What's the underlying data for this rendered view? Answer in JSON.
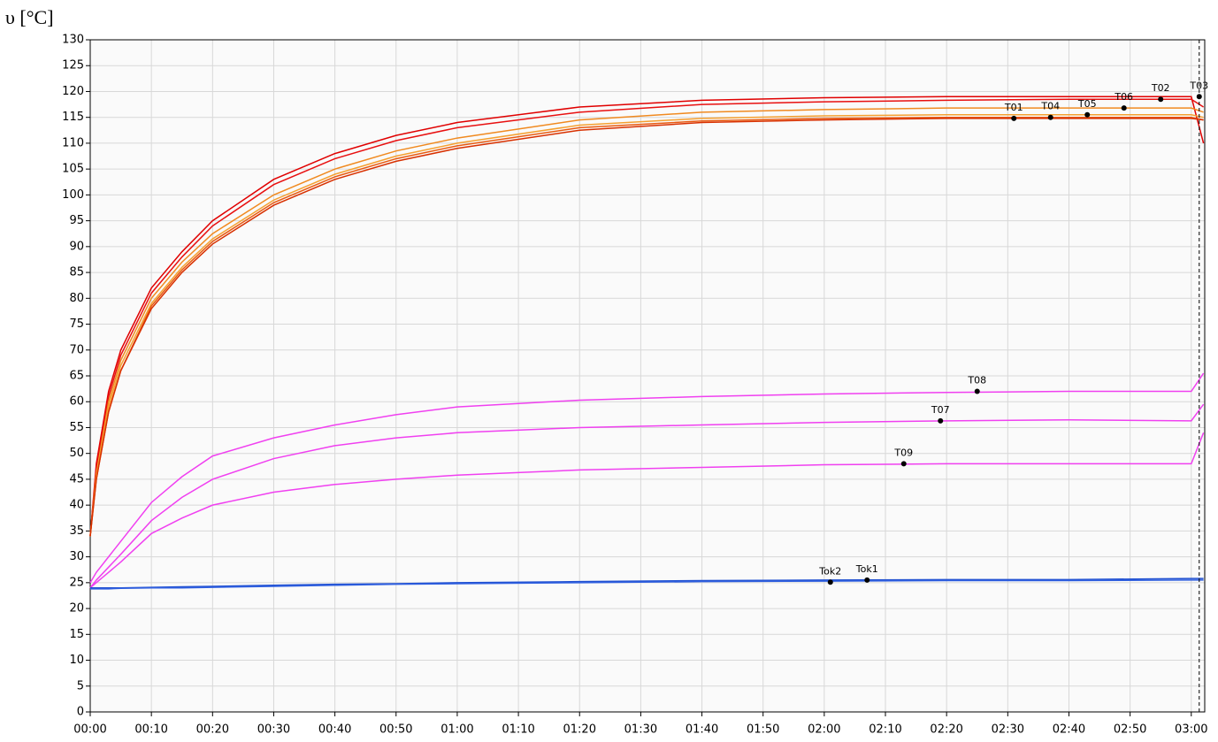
{
  "chart_data": {
    "type": "line",
    "y_label": "υ [°C]",
    "x": [
      0,
      1,
      3,
      5,
      10,
      15,
      20,
      30,
      40,
      50,
      60,
      80,
      100,
      120,
      140,
      160,
      180,
      182
    ],
    "series": [
      {
        "name": "T03",
        "color": "#e00000",
        "values": [
          34,
          48,
          62,
          70,
          82,
          89,
          95,
          103,
          108,
          111.5,
          114,
          117,
          118.3,
          118.8,
          119,
          119,
          119,
          110
        ]
      },
      {
        "name": "T02",
        "color": "#e81010",
        "values": [
          34,
          47,
          61,
          69,
          81,
          88,
          94,
          102,
          107,
          110.5,
          113,
          116,
          117.5,
          118,
          118.3,
          118.5,
          118.5,
          117
        ]
      },
      {
        "name": "T06",
        "color": "#f08a20",
        "values": [
          34,
          46,
          60,
          68,
          80,
          87,
          92.5,
          100,
          105,
          108.5,
          111,
          114.5,
          116,
          116.5,
          116.8,
          116.8,
          116.8,
          116
        ]
      },
      {
        "name": "T05",
        "color": "#f5a030",
        "values": [
          34,
          46,
          59,
          67,
          79,
          86,
          91.5,
          99,
          104,
          107.5,
          110,
          113.5,
          114.8,
          115.3,
          115.5,
          115.5,
          115.5,
          115
        ]
      },
      {
        "name": "T04",
        "color": "#e85a10",
        "values": [
          34,
          45,
          58,
          66,
          78.5,
          85.5,
          91,
          98.5,
          103.5,
          107,
          109.5,
          113,
          114.3,
          114.8,
          115,
          115,
          115,
          114.5
        ]
      },
      {
        "name": "T01",
        "color": "#d83000",
        "values": [
          34,
          45,
          58,
          66,
          78,
          85,
          90.5,
          98,
          103,
          106.5,
          109,
          112.5,
          114,
          114.5,
          114.8,
          114.8,
          114.8,
          114.5
        ]
      },
      {
        "name": "T08",
        "color": "#f040f0",
        "values": [
          25,
          27,
          30,
          33,
          40.5,
          45.5,
          49.5,
          53,
          55.5,
          57.5,
          59,
          60.3,
          61,
          61.5,
          61.8,
          62,
          62,
          65.5
        ]
      },
      {
        "name": "T07",
        "color": "#f040f0",
        "values": [
          24,
          25.5,
          28,
          30.5,
          37,
          41.5,
          45,
          49,
          51.5,
          53,
          54,
          55,
          55.5,
          56,
          56.3,
          56.5,
          56.3,
          59.5
        ]
      },
      {
        "name": "T09",
        "color": "#f040f0",
        "values": [
          24,
          25,
          27,
          29,
          34.5,
          37.5,
          40,
          42.5,
          44,
          45,
          45.8,
          46.8,
          47.3,
          47.8,
          48,
          48,
          48,
          54
        ]
      },
      {
        "name": "Tok1",
        "color": "#1f4fd0",
        "values": [
          24,
          24,
          24,
          24,
          24.1,
          24.2,
          24.3,
          24.5,
          24.7,
          24.8,
          25,
          25.2,
          25.4,
          25.5,
          25.6,
          25.6,
          25.8,
          25.8
        ]
      },
      {
        "name": "Tok2",
        "color": "#3060e0",
        "values": [
          23.8,
          23.8,
          23.8,
          23.9,
          24,
          24,
          24.1,
          24.3,
          24.5,
          24.7,
          24.8,
          25,
          25.2,
          25.3,
          25.4,
          25.4,
          25.5,
          25.5
        ]
      }
    ],
    "annotations": [
      {
        "label": "Tok2",
        "x": 121,
        "y": 25.1
      },
      {
        "label": "Tok1",
        "x": 127,
        "y": 25.5
      },
      {
        "label": "T09",
        "x": 133,
        "y": 48
      },
      {
        "label": "T07",
        "x": 139,
        "y": 56.3
      },
      {
        "label": "T08",
        "x": 145,
        "y": 62
      },
      {
        "label": "T01",
        "x": 151,
        "y": 114.8
      },
      {
        "label": "T04",
        "x": 157,
        "y": 115
      },
      {
        "label": "T05",
        "x": 163,
        "y": 115.5
      },
      {
        "label": "T06",
        "x": 169,
        "y": 116.8
      },
      {
        "label": "T02",
        "x": 175,
        "y": 118.5
      },
      {
        "label": "T03",
        "x": 181.3,
        "y": 119
      }
    ],
    "cursor_x": 181.3,
    "xlim": [
      0,
      182.2
    ],
    "xticks": [
      {
        "value": 0,
        "label": "00:00"
      },
      {
        "value": 10,
        "label": "00:10"
      },
      {
        "value": 20,
        "label": "00:20"
      },
      {
        "value": 30,
        "label": "00:30"
      },
      {
        "value": 40,
        "label": "00:40"
      },
      {
        "value": 50,
        "label": "00:50"
      },
      {
        "value": 60,
        "label": "01:00"
      },
      {
        "value": 70,
        "label": "01:10"
      },
      {
        "value": 80,
        "label": "01:20"
      },
      {
        "value": 90,
        "label": "01:30"
      },
      {
        "value": 100,
        "label": "01:40"
      },
      {
        "value": 110,
        "label": "01:50"
      },
      {
        "value": 120,
        "label": "02:00"
      },
      {
        "value": 130,
        "label": "02:10"
      },
      {
        "value": 140,
        "label": "02:20"
      },
      {
        "value": 150,
        "label": "02:30"
      },
      {
        "value": 160,
        "label": "02:40"
      },
      {
        "value": 170,
        "label": "02:50"
      },
      {
        "value": 180,
        "label": "03:00"
      }
    ],
    "ylim": [
      0,
      130
    ],
    "yticks": [
      0,
      5,
      10,
      15,
      20,
      25,
      30,
      35,
      40,
      45,
      50,
      55,
      60,
      65,
      70,
      75,
      80,
      85,
      90,
      95,
      100,
      105,
      110,
      115,
      120,
      125,
      130
    ],
    "grid": true
  }
}
